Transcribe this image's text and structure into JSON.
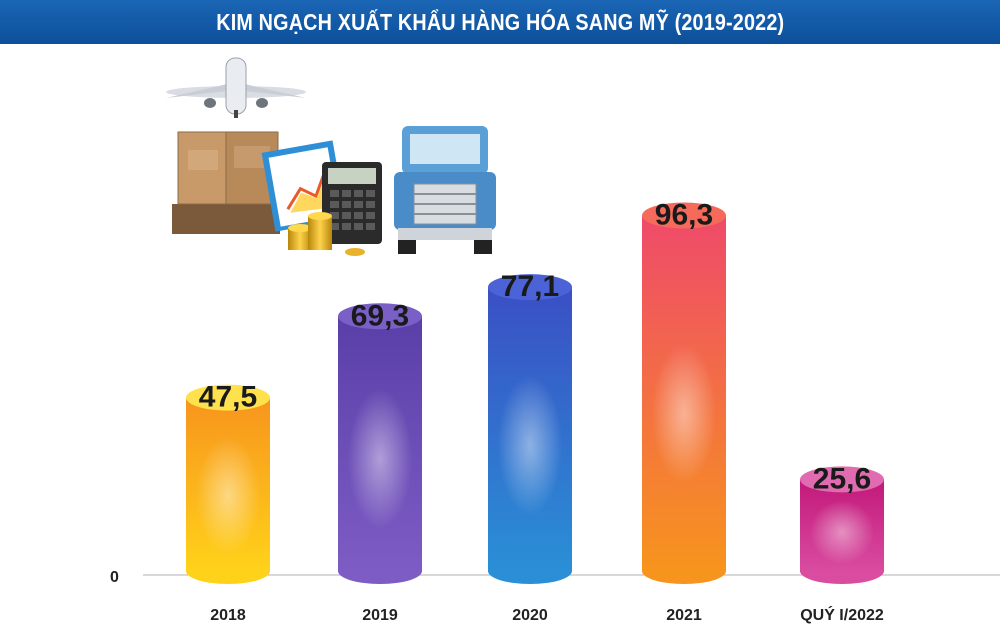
{
  "chart_data": {
    "type": "bar",
    "title": "KIM NGẠCH XUẤT KHẨU HÀNG HÓA SANG MỸ (2019-2022)",
    "categories": [
      "2018",
      "2019",
      "2020",
      "2021",
      "QUÝ I/2022"
    ],
    "values": [
      47.5,
      69.3,
      77.1,
      96.3,
      25.6
    ],
    "value_labels": [
      "47,5",
      "69,3",
      "77,1",
      "96,3",
      "25,6"
    ],
    "y_tick_label": "0",
    "ylim": [
      0,
      100
    ],
    "grid": false,
    "legend": "none",
    "colors": [
      {
        "top": "#f7941d",
        "bottom": "#ffd21a",
        "cap": "#ffe14d"
      },
      {
        "top": "#5a3fa8",
        "bottom": "#7d5cc4",
        "cap": "#7a5fc7"
      },
      {
        "top": "#3a4fc4",
        "bottom": "#2a8fd6",
        "cap": "#4b63d6"
      },
      {
        "top": "#ef4a6a",
        "bottom": "#f7941d",
        "cap": "#f56a5a"
      },
      {
        "top": "#c2187a",
        "bottom": "#d94ca0",
        "cap": "#e06bb0"
      }
    ]
  },
  "illustration": {
    "icons": [
      "airplane-icon",
      "cardboard-boxes-icon",
      "clipboard-chart-icon",
      "calculator-icon",
      "gold-coins-icon",
      "truck-icon"
    ]
  }
}
